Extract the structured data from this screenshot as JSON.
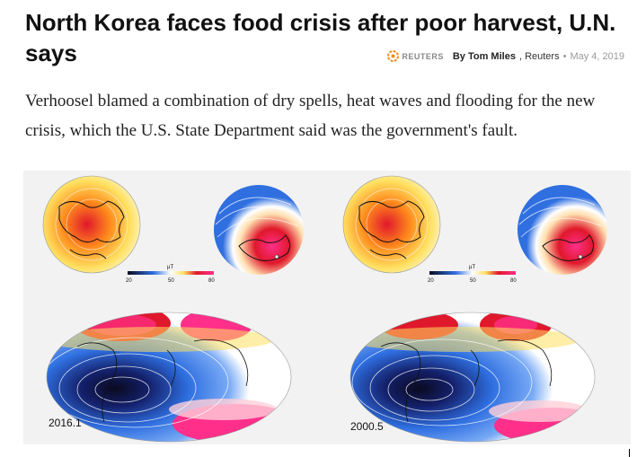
{
  "article": {
    "headline": "North Korea faces food crisis after poor harvest, U.N. says",
    "source_logo_text": "REUTERS",
    "author": "By Tom Miles",
    "publisher": ", Reuters",
    "separator": "•",
    "date": "May 4, 2019",
    "summary": "Verhoosel blamed a combination of dry spells, heat waves and flooding for the new crisis, which the U.S. State Department said was the government's fault."
  },
  "figure": {
    "panels": [
      {
        "year_label": "2016.1",
        "scale_unit": "µT",
        "scale_ticks": [
          "20",
          "50",
          "80"
        ]
      },
      {
        "year_label": "2000.5",
        "scale_unit": "µT",
        "scale_ticks": [
          "20",
          "50",
          "80"
        ]
      }
    ],
    "colors": {
      "low": "#0a0a20",
      "mid_blue": "#2f6fe0",
      "white": "#ffffff",
      "yellow": "#ffe060",
      "orange": "#ff8a1c",
      "red": "#e0182c",
      "magenta": "#ff2f8a"
    }
  }
}
